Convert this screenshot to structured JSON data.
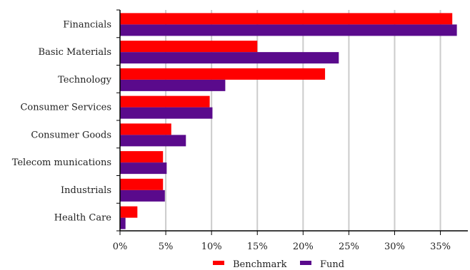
{
  "chart_data": {
    "type": "bar",
    "orientation": "horizontal",
    "categories": [
      "Financials",
      "Basic Materials",
      "Technology",
      "Consumer Services",
      "Consumer Goods",
      "Telecom munications",
      "Industrials",
      "Health Care"
    ],
    "series": [
      {
        "name": "Benchmark",
        "color": "#ff0000",
        "values": [
          36.3,
          15.0,
          22.4,
          9.8,
          5.6,
          4.7,
          4.7,
          1.9
        ]
      },
      {
        "name": "Fund",
        "color": "#5a0a8c",
        "values": [
          36.8,
          23.9,
          11.5,
          10.1,
          7.2,
          5.1,
          4.9,
          0.6
        ]
      }
    ],
    "xticks": [
      0,
      5,
      10,
      15,
      20,
      25,
      30,
      35
    ],
    "xtick_labels": [
      "0%",
      "5%",
      "10%",
      "15%",
      "20%",
      "25%",
      "30%",
      "35%"
    ],
    "xlim": [
      0,
      38
    ],
    "grid": "vertical",
    "legend": "bottom-center"
  }
}
